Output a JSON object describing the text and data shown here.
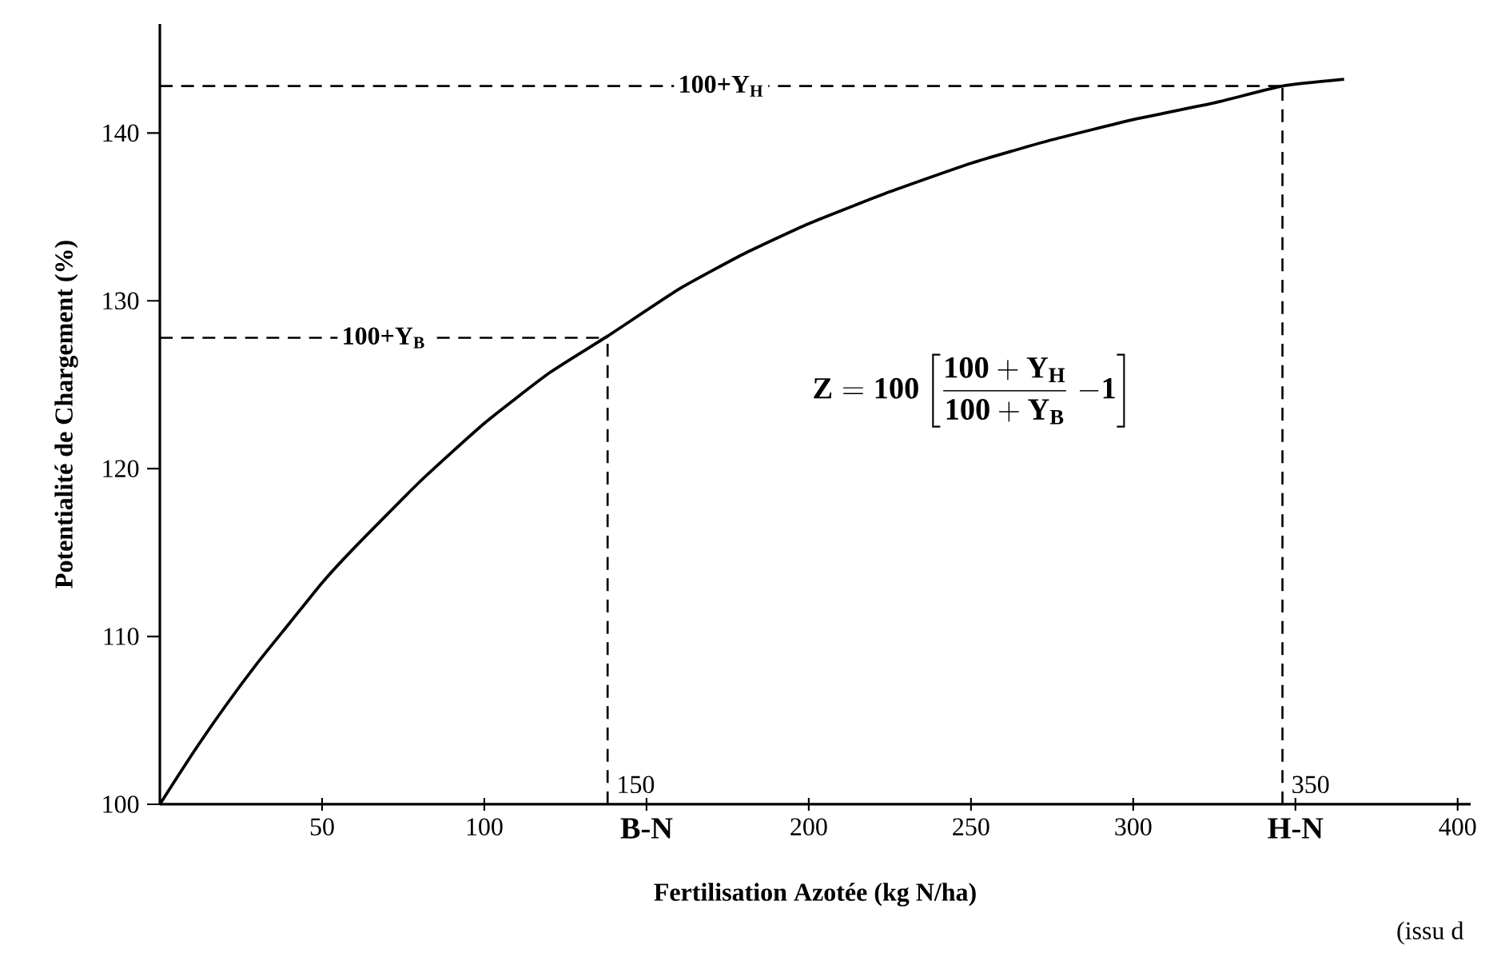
{
  "chart_data": {
    "type": "line",
    "xlabel": "Fertilisation Azotée (kg N/ha)",
    "ylabel": "Potentialité de Chargement (%)",
    "x": [
      0,
      10,
      20,
      30,
      40,
      50,
      60,
      80,
      100,
      120,
      138,
      160,
      180,
      200,
      225,
      250,
      275,
      300,
      325,
      346,
      365
    ],
    "series": [
      {
        "color": "#000000",
        "values": [
          100,
          103.0,
          105.8,
          108.4,
          110.8,
          113.2,
          115.3,
          119.2,
          122.7,
          125.7,
          127.9,
          130.7,
          132.8,
          134.6,
          136.5,
          138.2,
          139.6,
          140.8,
          141.8,
          142.8,
          143.2
        ]
      }
    ],
    "xlim": [
      0,
      404
    ],
    "ylim": [
      100,
      146.5
    ],
    "xticks": [
      50,
      100,
      {
        "value": 150,
        "label": "B-N"
      },
      200,
      250,
      300,
      {
        "value": 350,
        "label": "H-N"
      },
      400
    ],
    "yticks": [
      100,
      110,
      120,
      130,
      140
    ],
    "ref_lines": [
      {
        "axis": "x",
        "value": 138,
        "line_style": "dashed"
      },
      {
        "axis": "x",
        "value": 346,
        "line_style": "dashed"
      },
      {
        "axis": "y",
        "value": 127.8,
        "label": "100+Y$_{B}$",
        "line_style": "dashed"
      },
      {
        "axis": "y",
        "value": 142.8,
        "label": "100+Y$_{H}$",
        "line_style": "dashed"
      }
    ],
    "annotations": [
      {
        "text": "150",
        "x": 138,
        "y": 100
      },
      {
        "text": "350",
        "x": 346,
        "y": 100
      },
      "\\mathbf{Z = 100}\\left[\\dfrac{\\mathbf{100 + Y_H}}{\\mathbf{100 + Y_B}}\\;\\mathbf{-1}\\right]",
      "(issu d"
    ],
    "grid": false,
    "marker": "none",
    "line_style": "solid"
  }
}
